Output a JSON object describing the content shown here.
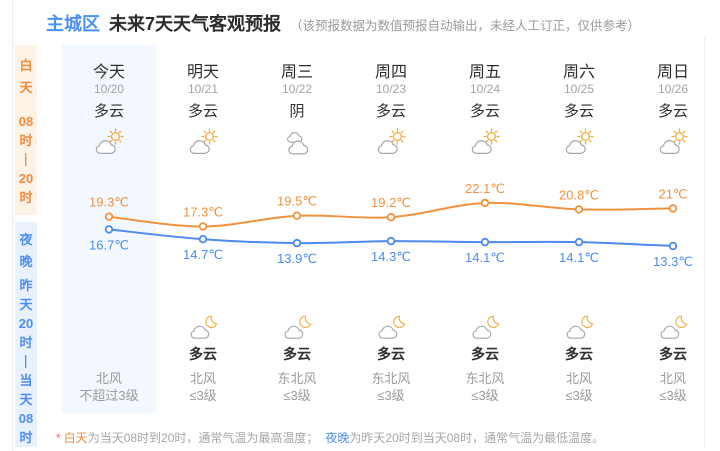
{
  "header": {
    "region": "主城区",
    "title": "未来7天天气客观预报",
    "disclaimer": "（该预报数据为数值预报自动输出，未经人工订正，仅供参考）"
  },
  "sidebar": {
    "day": {
      "label_chars": [
        "白",
        "天"
      ],
      "time_chars": [
        "08",
        "时",
        "—",
        "20",
        "时"
      ]
    },
    "night": {
      "label_chars": [
        "夜",
        "晚"
      ],
      "time_chars": [
        "昨",
        "天",
        "20",
        "时",
        "—",
        "当",
        "天",
        "08",
        "时"
      ]
    }
  },
  "days": [
    {
      "name": "今天",
      "date": "10/20",
      "day_weather": "多云",
      "day_icon": "partly-cloudy-day",
      "night_weather": "",
      "night_icon": "",
      "wind_dir": "北风",
      "wind_level": "不超过3级"
    },
    {
      "name": "明天",
      "date": "10/21",
      "day_weather": "多云",
      "day_icon": "partly-cloudy-day",
      "night_weather": "多云",
      "night_icon": "cloudy-night",
      "wind_dir": "北风",
      "wind_level": "≤3级"
    },
    {
      "name": "周三",
      "date": "10/22",
      "day_weather": "阴",
      "day_icon": "overcast",
      "night_weather": "多云",
      "night_icon": "cloudy-night",
      "wind_dir": "东北风",
      "wind_level": "≤3级"
    },
    {
      "name": "周四",
      "date": "10/23",
      "day_weather": "多云",
      "day_icon": "partly-cloudy-day",
      "night_weather": "多云",
      "night_icon": "cloudy-night",
      "wind_dir": "东北风",
      "wind_level": "≤3级"
    },
    {
      "name": "周五",
      "date": "10/24",
      "day_weather": "多云",
      "day_icon": "partly-cloudy-day",
      "night_weather": "多云",
      "night_icon": "cloudy-night",
      "wind_dir": "东北风",
      "wind_level": "≤3级"
    },
    {
      "name": "周六",
      "date": "10/25",
      "day_weather": "多云",
      "day_icon": "partly-cloudy-day",
      "night_weather": "多云",
      "night_icon": "cloudy-night",
      "wind_dir": "北风",
      "wind_level": "≤3级"
    },
    {
      "name": "周日",
      "date": "10/26",
      "day_weather": "多云",
      "day_icon": "partly-cloudy-day",
      "night_weather": "多云",
      "night_icon": "cloudy-night",
      "wind_dir": "北风",
      "wind_level": "≤3级"
    }
  ],
  "chart_data": {
    "type": "line",
    "categories": [
      "今天",
      "明天",
      "周三",
      "周四",
      "周五",
      "周六",
      "周日"
    ],
    "unit": "℃",
    "series": [
      {
        "name": "白天最高气温",
        "color": "#f0923e",
        "label_position": "above",
        "values": [
          19.3,
          17.3,
          19.5,
          19.2,
          22.1,
          20.8,
          21
        ],
        "labels": [
          "19.3℃",
          "17.3℃",
          "19.5℃",
          "19.2℃",
          "22.1℃",
          "20.8℃",
          "21℃"
        ]
      },
      {
        "name": "夜晚最低气温",
        "color": "#4d8bf0",
        "label_position": "below",
        "values": [
          16.7,
          14.7,
          13.9,
          14.3,
          14.1,
          14.1,
          13.3
        ],
        "labels": [
          "16.7℃",
          "14.7℃",
          "13.9℃",
          "14.3℃",
          "14.1℃",
          "14.1℃",
          "13.3℃"
        ]
      }
    ],
    "ylim": [
      13,
      23
    ],
    "grid": false,
    "legend": "none"
  },
  "footer": {
    "asterisk": "*",
    "day_term": "白天",
    "day_text": "为当天08时到20时，通常气温为最高温度；",
    "night_term": "夜晚",
    "night_text": "为昨天20时到当天08时，通常气温为最低温度。"
  }
}
